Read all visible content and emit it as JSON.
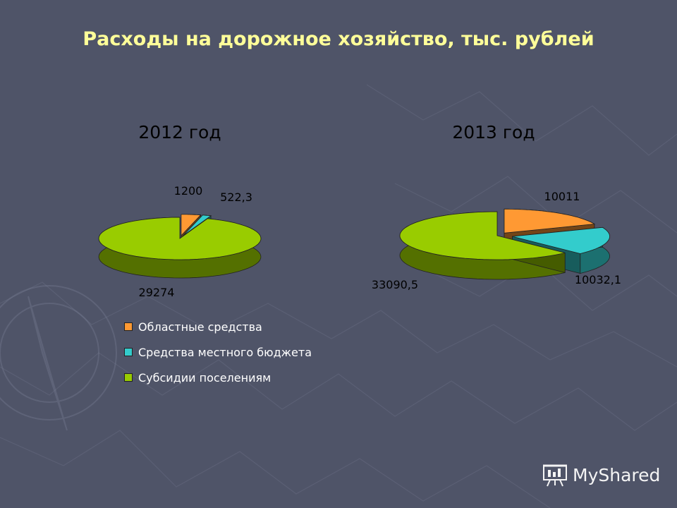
{
  "title": "Расходы на дорожное хозяйство, тыс. рублей",
  "colors": {
    "background": "#4f5468",
    "title": "#ffff99",
    "oblast": "#ff9933",
    "local": "#33cccc",
    "subsidy": "#99cc00"
  },
  "legend": [
    {
      "label": "Областные средства",
      "color": "#ff9933"
    },
    {
      "label": "Средства местного бюджета",
      "color": "#33cccc"
    },
    {
      "label": "Субсидии поселениям",
      "color": "#99cc00"
    }
  ],
  "chart_data": [
    {
      "type": "pie",
      "title": "2012 год",
      "categories": [
        "Областные средства",
        "Средства местного бюджета",
        "Субсидии поселениям"
      ],
      "values": [
        1200,
        522.3,
        29274
      ],
      "value_labels": [
        "1200",
        "522,3",
        "29274"
      ],
      "exploded": true,
      "style": "3d"
    },
    {
      "type": "pie",
      "title": "2013 год",
      "categories": [
        "Областные средства",
        "Средства местного бюджета",
        "Субсидии поселениям"
      ],
      "values": [
        10011,
        10032.1,
        33090.5
      ],
      "value_labels": [
        "10011",
        "10032,1",
        "33090,5"
      ],
      "exploded": true,
      "style": "3d"
    }
  ],
  "watermark": {
    "text": "MyShared",
    "icon": "presentation-board-icon"
  }
}
